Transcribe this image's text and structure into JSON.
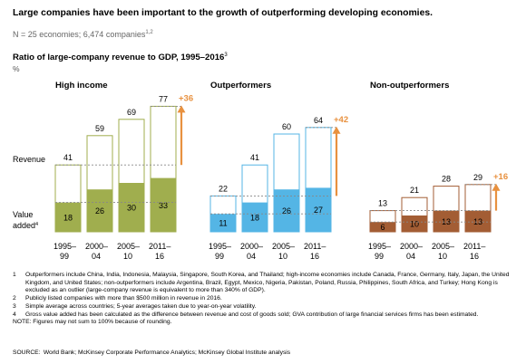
{
  "title": "Large companies have been important to the growth of outperforming developing economies.",
  "subtitle": {
    "text": "N = 25 economies; 6,474 companies",
    "sup": "1,2"
  },
  "chart_title": {
    "text": "Ratio of large-company revenue to GDP, 1995–2016",
    "sup": "3"
  },
  "unit": "%",
  "row_labels": {
    "revenue": "Revenue",
    "value_added_line1": "Value",
    "value_added_line2": "added",
    "value_added_sup": "4"
  },
  "colors": {
    "high_income": "#a0ae4e",
    "outperformers": "#54b5e5",
    "non_outperformers": "#a35d34",
    "arrow": "#e8913f",
    "dashed": "#888888"
  },
  "chart_data": {
    "type": "bar",
    "categories": [
      "1995–99",
      "2000–04",
      "2005–10",
      "2011–16"
    ],
    "category_lines": [
      [
        "1995–",
        "99"
      ],
      [
        "2000–",
        "04"
      ],
      [
        "2005–",
        "10"
      ],
      [
        "2011–",
        "16"
      ]
    ],
    "ylim": [
      0,
      80
    ],
    "groups": [
      {
        "name": "High income",
        "revenue": [
          41,
          59,
          69,
          77
        ],
        "value_added": [
          18,
          26,
          30,
          33
        ],
        "change": "+36"
      },
      {
        "name": "Outperformers",
        "revenue": [
          22,
          41,
          60,
          64
        ],
        "value_added": [
          11,
          18,
          26,
          27
        ],
        "change": "+42"
      },
      {
        "name": "Non-outperformers",
        "revenue": [
          13,
          21,
          28,
          29
        ],
        "value_added": [
          6,
          10,
          13,
          13
        ],
        "change": "+16"
      }
    ]
  },
  "notes": [
    {
      "num": "1",
      "text": "Outperformers include China, India, Indonesia, Malaysia, Singapore, South Korea, and Thailand; high-income economies include Canada, France, Germany, Italy, Japan, the United Kingdom, and United States; non-outperformers include Argentina, Brazil, Egypt, Mexico, Nigeria, Pakistan, Poland, Russia, Philippines, South Africa, and Turkey; Hong Kong is excluded as an outlier (large-company revenue is equivalent to more than 340% of GDP)."
    },
    {
      "num": "2",
      "text": "Publicly listed companies with more than $500 million in revenue in 2016."
    },
    {
      "num": "3",
      "text": "Simple average across countries; 5-year averages taken due to year-on-year volatility."
    },
    {
      "num": "4",
      "text": "Gross value added has been calculated as the difference between revenue and cost of goods sold; GVA contribution of large financial services firms has been estimated."
    }
  ],
  "final_note": "NOTE: Figures may not sum to 100% because of rounding.",
  "source": "SOURCE: World Bank; McKinsey Corporate Performance Analytics; McKinsey Global Institute analysis"
}
